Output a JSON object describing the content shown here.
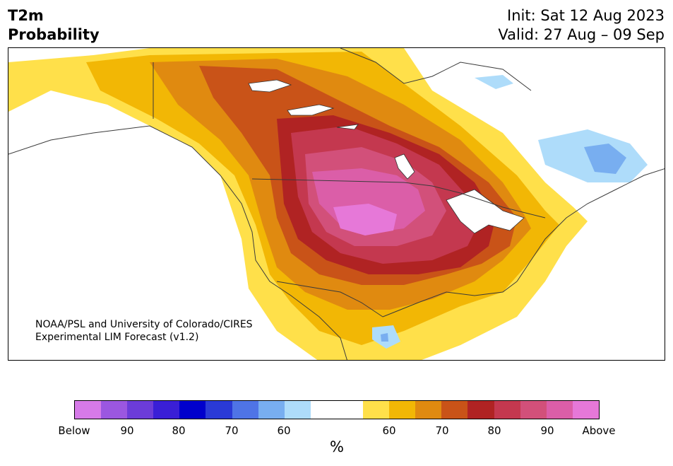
{
  "title": {
    "left_line1": "T2m",
    "left_line2": "Probability",
    "right_line1": "Init: Sat 12 Aug 2023",
    "right_line2": "Valid: 27 Aug – 09 Sep"
  },
  "map": {
    "region": "North America",
    "credit_line1": "NOAA/PSL and University of Colorado/CIRES",
    "credit_line2": "Experimental LIM Forecast (v1.2)"
  },
  "colorbar": {
    "unit": "%",
    "colors": [
      "#d67ae8",
      "#9b57e0",
      "#6c3cd8",
      "#3a1fd6",
      "#0000cc",
      "#2a3ad6",
      "#4f74e6",
      "#78aef0",
      "#aedcfa",
      "#ffffff",
      "#ffffff",
      "#ffe04a",
      "#f2b705",
      "#e08a10",
      "#c95318",
      "#b02323",
      "#c4384f",
      "#d2507a",
      "#db5ea8",
      "#e678d8"
    ],
    "tick_labels": [
      "Below",
      "90",
      "80",
      "70",
      "60",
      "60",
      "70",
      "80",
      "90",
      "Above"
    ]
  },
  "colors": {
    "above_50": "#ffe04a",
    "above_60": "#f2b705",
    "above_65": "#e08a10",
    "above_70": "#c95318",
    "above_75": "#b02323",
    "above_80": "#c4384f",
    "above_85": "#d2507a",
    "above_90": "#db5ea8",
    "above_95": "#e678d8",
    "below_light": "#aedcfa",
    "below_mid": "#78aef0",
    "below_strong": "#4f74e6"
  }
}
